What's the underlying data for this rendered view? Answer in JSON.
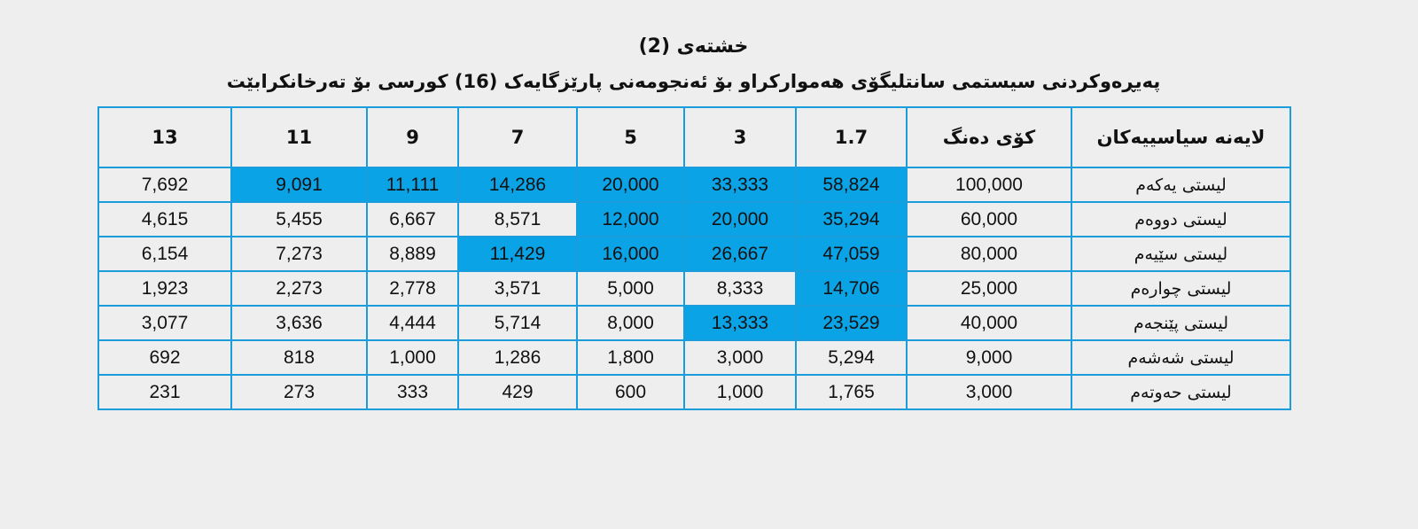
{
  "title": "خشتەی (2)",
  "subtitle": "پەیڕەوکردنی سیستمی سانتلیگۆی هەموارکراو بۆ ئەنجومەنی پارێزگایەک (16) کورسی بۆ تەرخانکرابێت",
  "highlight_color": "#0aa3e6",
  "headers": [
    "لایەنە سیاسییەکان",
    "کۆی دەنگ",
    "1.7",
    "3",
    "5",
    "7",
    "9",
    "11",
    "13"
  ],
  "rows": [
    {
      "party": "لیستی یەکەم",
      "votes": "100,000",
      "quotients": [
        "58,824",
        "33,333",
        "20,000",
        "14,286",
        "11,111",
        "9,091",
        "7,692"
      ],
      "highlighted": [
        true,
        true,
        true,
        true,
        true,
        true,
        false
      ]
    },
    {
      "party": "لیستی دووەم",
      "votes": "60,000",
      "quotients": [
        "35,294",
        "20,000",
        "12,000",
        "8,571",
        "6,667",
        "5,455",
        "4,615"
      ],
      "highlighted": [
        true,
        true,
        true,
        false,
        false,
        false,
        false
      ]
    },
    {
      "party": "لیستی سێیەم",
      "votes": "80,000",
      "quotients": [
        "47,059",
        "26,667",
        "16,000",
        "11,429",
        "8,889",
        "7,273",
        "6,154"
      ],
      "highlighted": [
        true,
        true,
        true,
        true,
        false,
        false,
        false
      ]
    },
    {
      "party": "لیستی چوارەم",
      "votes": "25,000",
      "quotients": [
        "14,706",
        "8,333",
        "5,000",
        "3,571",
        "2,778",
        "2,273",
        "1,923"
      ],
      "highlighted": [
        true,
        false,
        false,
        false,
        false,
        false,
        false
      ]
    },
    {
      "party": "لیستی پێنجەم",
      "votes": "40,000",
      "quotients": [
        "23,529",
        "13,333",
        "8,000",
        "5,714",
        "4,444",
        "3,636",
        "3,077"
      ],
      "highlighted": [
        true,
        true,
        false,
        false,
        false,
        false,
        false
      ]
    },
    {
      "party": "لیستی شەشەم",
      "votes": "9,000",
      "quotients": [
        "5,294",
        "3,000",
        "1,800",
        "1,286",
        "1,000",
        "818",
        "692"
      ],
      "highlighted": [
        false,
        false,
        false,
        false,
        false,
        false,
        false
      ]
    },
    {
      "party": "لیستی حەوتەم",
      "votes": "3,000",
      "quotients": [
        "1,765",
        "1,000",
        "600",
        "429",
        "333",
        "273",
        "231"
      ],
      "highlighted": [
        false,
        false,
        false,
        false,
        false,
        false,
        false
      ]
    }
  ]
}
